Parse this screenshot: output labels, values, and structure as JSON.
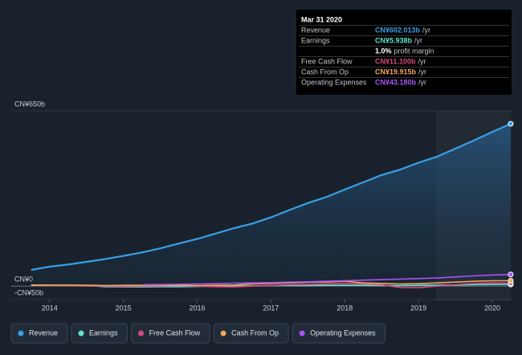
{
  "chart_data": {
    "type": "line",
    "x": [
      2013.75,
      2014,
      2014.25,
      2014.5,
      2014.75,
      2015,
      2015.25,
      2015.5,
      2015.75,
      2016,
      2016.25,
      2016.5,
      2016.75,
      2017,
      2017.25,
      2017.5,
      2017.75,
      2018,
      2018.25,
      2018.5,
      2018.75,
      2019,
      2019.25,
      2019.5,
      2019.75,
      2020,
      2020.25
    ],
    "series": [
      {
        "name": "Revenue",
        "color": "#3a9fe6",
        "values": [
          60,
          72,
          80,
          90,
          100,
          112,
          125,
          140,
          158,
          175,
          195,
          215,
          232,
          255,
          282,
          308,
          330,
          358,
          385,
          412,
          432,
          458,
          480,
          510,
          540,
          572,
          602
        ]
      },
      {
        "name": "Earnings",
        "color": "#5fe3cf",
        "values": [
          4,
          3,
          3,
          2,
          -2,
          -3,
          -3,
          -2,
          -2,
          -1,
          0,
          1,
          1,
          2,
          2,
          2,
          3,
          3,
          3,
          2,
          2,
          3,
          4,
          4,
          5,
          6,
          6
        ]
      },
      {
        "name": "Free Cash Flow",
        "color": "#d6487f",
        "values": [
          2,
          3,
          2,
          1,
          0,
          -1,
          0,
          1,
          2,
          0,
          -2,
          -3,
          0,
          2,
          5,
          6,
          8,
          10,
          8,
          5,
          -5,
          -6,
          0,
          5,
          10,
          12,
          11
        ]
      },
      {
        "name": "Cash From Op",
        "color": "#f2a65a",
        "values": [
          3,
          4,
          4,
          3,
          2,
          3,
          3,
          4,
          3,
          2,
          3,
          4,
          8,
          10,
          12,
          14,
          15,
          18,
          12,
          10,
          8,
          9,
          12,
          15,
          18,
          20,
          20
        ]
      },
      {
        "name": "Operating Expenses",
        "color": "#a855f7",
        "values": [
          null,
          null,
          null,
          null,
          null,
          null,
          5,
          6,
          7,
          8,
          9,
          11,
          12,
          13,
          15,
          16,
          18,
          20,
          22,
          24,
          26,
          28,
          30,
          34,
          38,
          41,
          43
        ]
      }
    ],
    "xlim": [
      2013.48,
      2020.25
    ],
    "xticks": [
      2014,
      2015,
      2016,
      2017,
      2018,
      2019,
      2020
    ],
    "ylim": [
      -50,
      650
    ],
    "yticks": [
      {
        "value": -50,
        "label": "-CN¥50b"
      },
      {
        "value": 0,
        "label": "CN¥0"
      },
      {
        "value": 650,
        "label": "CN¥650b"
      }
    ],
    "tooltip": {
      "date": "Mar 31 2020",
      "rows": [
        {
          "label": "Revenue",
          "value": "CN¥602.013b",
          "unit": "/yr"
        },
        {
          "label": "Earnings",
          "value": "CN¥5.938b",
          "unit": "/yr"
        },
        {
          "label": "",
          "value": "1.0%",
          "unit": "profit margin"
        },
        {
          "label": "Free Cash Flow",
          "value": "CN¥11.100b",
          "unit": "/yr"
        },
        {
          "label": "Cash From Op",
          "value": "CN¥19.915b",
          "unit": "/yr"
        },
        {
          "label": "Operating Expenses",
          "value": "CN¥43.180b",
          "unit": "/yr"
        }
      ]
    }
  }
}
